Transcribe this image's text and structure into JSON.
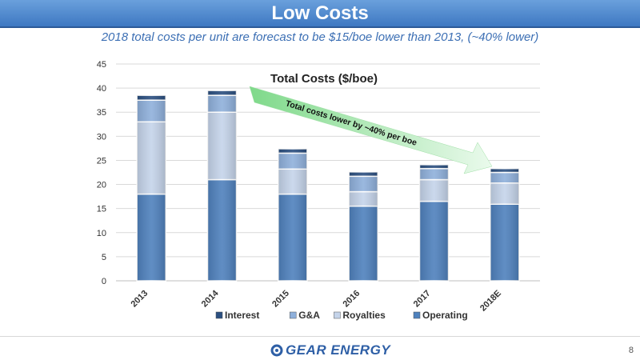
{
  "header": {
    "title": "Low Costs",
    "subtitle": "2018 total costs per unit are forecast to be $15/boe lower than 2013, (~40% lower)"
  },
  "chart_data": {
    "type": "bar",
    "stacked": true,
    "title": "Total Costs ($/boe)",
    "xlabel": "",
    "ylabel": "",
    "categories": [
      "2013",
      "2014",
      "2015",
      "2016",
      "2017",
      "2018E"
    ],
    "ylim": [
      0,
      45
    ],
    "yticks": [
      0,
      5,
      10,
      15,
      20,
      25,
      30,
      35,
      40,
      45
    ],
    "grid": true,
    "legend_position": "bottom",
    "series": [
      {
        "name": "Operating",
        "color": "#4f81bd",
        "values": [
          18.0,
          21.0,
          18.0,
          15.5,
          16.5,
          15.9
        ]
      },
      {
        "name": "Royalties",
        "color": "#c5d4ea",
        "values": [
          15.0,
          14.0,
          5.2,
          3.0,
          4.5,
          4.4
        ]
      },
      {
        "name": "G&A",
        "color": "#8fb0db",
        "values": [
          4.5,
          3.5,
          3.3,
          3.2,
          2.3,
          2.2
        ]
      },
      {
        "name": "Interest",
        "color": "#2b4f80",
        "values": [
          1.0,
          1.0,
          0.9,
          0.9,
          0.8,
          0.8
        ]
      }
    ],
    "legend_order": [
      "Interest",
      "G&A",
      "Royalties",
      "Operating"
    ],
    "annotation": "Total costs lower by ~40% per boe"
  },
  "footer": {
    "logo_text": "GEAR ENERGY",
    "page_number": "8"
  }
}
